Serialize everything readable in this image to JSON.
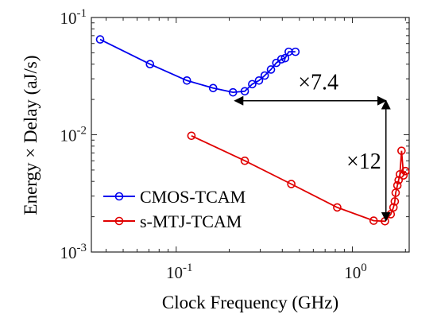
{
  "chart_data": {
    "type": "line",
    "title": "",
    "xlabel": "Clock Frequency (GHz)",
    "ylabel": "Energy × Delay (aJ/s)",
    "xscale": "log",
    "yscale": "log",
    "xlim": [
      0.033,
      2.1
    ],
    "ylim": [
      0.001,
      0.1
    ],
    "grid": false,
    "legend_position": "bottom-left",
    "x_ticks": [
      {
        "base": "10",
        "exp": "-1"
      },
      {
        "base": "10",
        "exp": "0"
      }
    ],
    "y_ticks": [
      {
        "base": "10",
        "exp": "-3"
      },
      {
        "base": "10",
        "exp": "-2"
      },
      {
        "base": "10",
        "exp": "-1"
      }
    ],
    "series": [
      {
        "name": "CMOS-TCAM",
        "color": "#0000ee",
        "marker": "circle",
        "x": [
          0.037,
          0.071,
          0.115,
          0.162,
          0.21,
          0.245,
          0.27,
          0.295,
          0.318,
          0.345,
          0.37,
          0.395,
          0.415,
          0.435,
          0.475
        ],
        "y": [
          0.065,
          0.04,
          0.029,
          0.025,
          0.023,
          0.0235,
          0.027,
          0.029,
          0.032,
          0.036,
          0.041,
          0.044,
          0.045,
          0.051,
          0.051
        ]
      },
      {
        "name": "s-MTJ-TCAM",
        "color": "#e00000",
        "marker": "circle",
        "x": [
          0.122,
          0.245,
          0.45,
          0.82,
          1.32,
          1.53,
          1.65,
          1.71,
          1.74,
          1.76,
          1.8,
          1.83,
          1.86,
          1.9,
          1.95,
          2.0
        ],
        "y": [
          0.0098,
          0.006,
          0.0038,
          0.0024,
          0.00185,
          0.00183,
          0.0021,
          0.0024,
          0.0027,
          0.0032,
          0.0037,
          0.0041,
          0.0046,
          0.0073,
          0.0045,
          0.0049
        ]
      }
    ],
    "annotations": [
      {
        "text": "×7.4",
        "kind": "horizontal-arrow",
        "from": [
          0.215,
          0.0195
        ],
        "to": [
          1.55,
          0.0195
        ]
      },
      {
        "text": "×12",
        "kind": "vertical-arrow",
        "from": [
          1.55,
          0.0195
        ],
        "to": [
          1.55,
          0.00185
        ]
      }
    ]
  }
}
